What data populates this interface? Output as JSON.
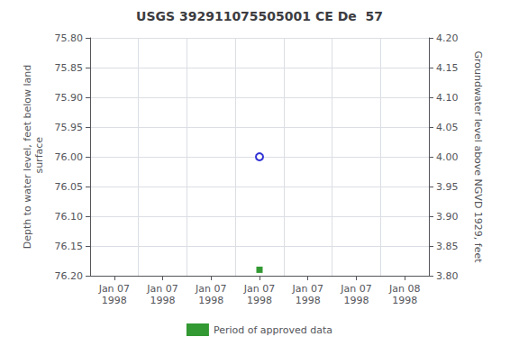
{
  "chart_data": {
    "type": "scatter",
    "title": "USGS 392911075505001 CE De  57",
    "ylabel": "Depth to water level, feet below land\n surface",
    "y2label": "Groundwater level above NGVD 1929, feet",
    "categories": [
      "Jan 07\n1998",
      "Jan 07\n1998",
      "Jan 07\n1998",
      "Jan 07\n1998",
      "Jan 07\n1998",
      "Jan 07\n1998",
      "Jan 08\n1998"
    ],
    "series": [
      {
        "color": "#0000cc",
        "marker": "circle_open",
        "values": [
          null,
          null,
          null,
          76.0,
          null,
          null,
          null
        ]
      },
      {
        "name": "Period of approved data",
        "color": "#008000",
        "marker": "square",
        "values": [
          null,
          null,
          null,
          76.19,
          null,
          null,
          null
        ]
      }
    ],
    "ylim": [
      76.2,
      75.8
    ],
    "yticks": [
      {
        "value": 75.8,
        "label": "75.80"
      },
      75.85,
      {
        "value": 75.9,
        "label": "75.90"
      },
      75.95,
      {
        "value": 76.0,
        "label": "76.00"
      },
      76.05,
      {
        "value": 76.1,
        "label": "76.10"
      },
      76.15,
      {
        "value": 76.2,
        "label": "76.20"
      }
    ],
    "y2lim": [
      3.8,
      4.2
    ],
    "y2ticks": [
      {
        "value": 3.8,
        "label": "3.80"
      },
      3.85,
      {
        "value": 3.9,
        "label": "3.90"
      },
      3.95,
      {
        "value": 4.0,
        "label": "4.00"
      },
      4.05,
      {
        "value": 4.1,
        "label": "4.10"
      },
      4.15,
      {
        "value": 4.2,
        "label": "4.20"
      }
    ],
    "grid": true,
    "legend": "bottom"
  }
}
